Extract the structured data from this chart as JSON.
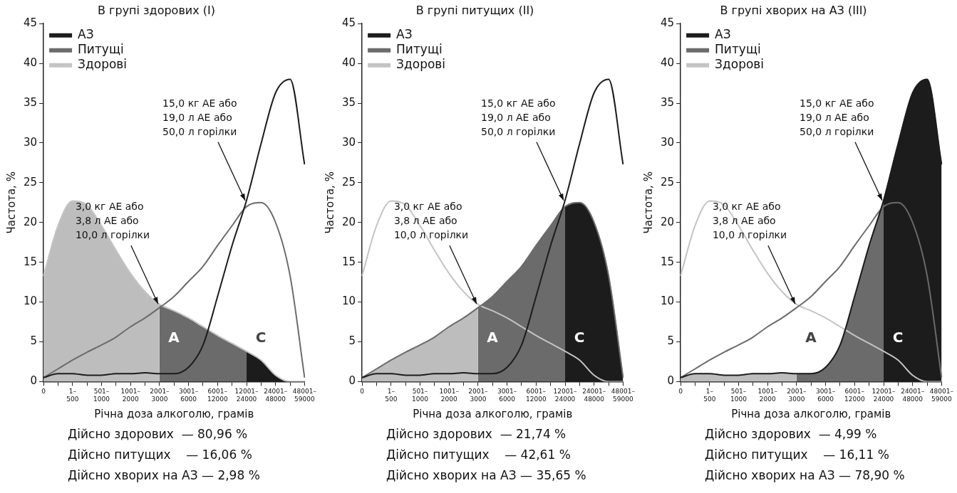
{
  "chart_data": [
    {
      "type": "line",
      "title": "В групі здорових (I)",
      "xlabel": "Річна доза алкоголю, грамів",
      "ylabel": "Частота, %",
      "categories": [
        "0",
        null,
        "1–500",
        null,
        "501–1000",
        null,
        "1001–2000",
        null,
        "2001–3000",
        null,
        "3001–6000",
        null,
        "6001–12000",
        null,
        "12001–24000",
        null,
        "24001–48000",
        null,
        "48001–59000"
      ],
      "series": [
        {
          "type": "area",
          "color": "#bdbdbd",
          "values": [
            13.3,
            19.6,
            22.7,
            22.2,
            19.6,
            16.5,
            13.6,
            11.3,
            9.7,
            null,
            null,
            null,
            null,
            null,
            null,
            null,
            null,
            null,
            null
          ]
        },
        {
          "type": "area",
          "color": "#6b6b6b",
          "values": [
            null,
            null,
            null,
            null,
            null,
            null,
            null,
            null,
            9.7,
            8.9,
            8.0,
            6.9,
            5.8,
            4.8,
            3.8,
            null,
            null,
            null,
            null
          ]
        },
        {
          "type": "area",
          "color": "#1c1c1c",
          "values": [
            null,
            null,
            null,
            null,
            null,
            null,
            null,
            null,
            null,
            null,
            null,
            null,
            null,
            null,
            3.8,
            2.7,
            0.8,
            0,
            0
          ]
        },
        {
          "name": "АЗ",
          "type": "line",
          "color": "#1c1c1c",
          "values": [
            0.5,
            1.0,
            1.0,
            0.8,
            0.8,
            1.0,
            1.0,
            1.1,
            1.0,
            1.0,
            1.8,
            4.6,
            10.7,
            17.1,
            22.8,
            29.9,
            36.3,
            38.0,
            27.3
          ]
        },
        {
          "name": "Питущі",
          "type": "line",
          "color": "#6b6b6b",
          "values": [
            0.5,
            1.6,
            2.7,
            3.7,
            4.6,
            5.6,
            6.9,
            8.0,
            9.3,
            10.7,
            12.6,
            14.5,
            17.1,
            19.6,
            22.0,
            22.5,
            20.0,
            13.3,
            0.5
          ]
        },
        {
          "name": "Здорові",
          "type": "line",
          "color": "#c4c4c4",
          "values": [
            13.3,
            19.6,
            22.7,
            22.2,
            19.6,
            16.5,
            13.6,
            11.3,
            9.7,
            8.9,
            8.0,
            6.9,
            5.8,
            4.8,
            3.8,
            2.7,
            0.8,
            0,
            0
          ]
        }
      ],
      "ylim": [
        0,
        45
      ],
      "yticks": [
        0,
        5,
        10,
        15,
        20,
        25,
        30,
        35,
        40,
        45
      ],
      "grid": false,
      "legend": "top left",
      "marker": "none",
      "annotations": [
        "A",
        "C",
        {
          "text": "3,0 кг АЕ або\n3,8 л АЕ або\n10,0 л горілки",
          "x": "2001–3000",
          "y": 9.5
        },
        {
          "text": "15,0 кг АЕ або\n19,0 л АЕ або\n50,0 л горілки",
          "x": "12001–24000",
          "y": 22.5
        },
        "Дійсно здорових  — 80,96 %",
        "Дійсно питущих    — 16,06 %",
        "Дійсно хворих на АЗ — 2,98 %"
      ]
    },
    {
      "type": "line",
      "title": "В групі питущих (II)",
      "xlabel": "Річна доза алкоголю, грамів",
      "ylabel": "Частота, %",
      "categories": [
        "0",
        null,
        "1–500",
        null,
        "501–1000",
        null,
        "1001–2000",
        null,
        "2001–3000",
        null,
        "3001–6000",
        null,
        "6001–12000",
        null,
        "12001–24000",
        null,
        "24001–48000",
        null,
        "48001–59000"
      ],
      "series": [
        {
          "type": "area",
          "color": "#bdbdbd",
          "values": [
            0.5,
            1.6,
            2.7,
            3.7,
            4.6,
            5.6,
            6.9,
            8.0,
            9.3,
            null,
            null,
            null,
            null,
            null,
            null,
            null,
            null,
            null,
            null
          ]
        },
        {
          "type": "area",
          "color": "#6b6b6b",
          "values": [
            null,
            null,
            null,
            null,
            null,
            null,
            null,
            null,
            9.3,
            10.7,
            12.6,
            14.5,
            17.1,
            19.6,
            22.0,
            null,
            null,
            null,
            null
          ]
        },
        {
          "type": "area",
          "color": "#1c1c1c",
          "values": [
            null,
            null,
            null,
            null,
            null,
            null,
            null,
            null,
            null,
            null,
            null,
            null,
            null,
            null,
            22.0,
            22.5,
            20.0,
            13.3,
            0.5
          ]
        },
        {
          "name": "АЗ",
          "type": "line",
          "color": "#1c1c1c",
          "values": [
            0.5,
            1.0,
            1.0,
            0.8,
            0.8,
            1.0,
            1.0,
            1.1,
            1.0,
            1.0,
            1.8,
            4.6,
            10.7,
            17.1,
            22.8,
            29.9,
            36.3,
            38.0,
            27.3
          ]
        },
        {
          "name": "Питущі",
          "type": "line",
          "color": "#6b6b6b",
          "values": [
            0.5,
            1.6,
            2.7,
            3.7,
            4.6,
            5.6,
            6.9,
            8.0,
            9.3,
            10.7,
            12.6,
            14.5,
            17.1,
            19.6,
            22.0,
            22.5,
            20.0,
            13.3,
            0.5
          ]
        },
        {
          "name": "Здорові",
          "type": "line",
          "color": "#c4c4c4",
          "values": [
            13.3,
            19.6,
            22.7,
            22.2,
            19.6,
            16.5,
            13.6,
            11.3,
            9.7,
            8.9,
            8.0,
            6.9,
            5.8,
            4.8,
            3.8,
            2.7,
            0.8,
            0,
            0
          ]
        }
      ],
      "ylim": [
        0,
        45
      ],
      "yticks": [
        0,
        5,
        10,
        15,
        20,
        25,
        30,
        35,
        40,
        45
      ],
      "grid": false,
      "legend": "top left",
      "marker": "none",
      "annotations": [
        "A",
        "C",
        {
          "text": "3,0 кг АЕ або\n3,8 л АЕ або\n10,0 л горілки",
          "x": "2001–3000",
          "y": 9.5
        },
        {
          "text": "15,0 кг АЕ або\n19,0 л АЕ або\n50,0 л горілки",
          "x": "12001–24000",
          "y": 22.5
        },
        "Дійсно здорових  — 21,74 %",
        "Дійсно питущих    — 42,61 %",
        "Дійсно хворих на АЗ — 35,65 %"
      ]
    },
    {
      "type": "line",
      "title": "В групі хворих на АЗ (III)",
      "xlabel": "Річна доза алкоголю, грамів",
      "ylabel": "Частота, %",
      "categories": [
        "0",
        null,
        "1–500",
        null,
        "501–1000",
        null,
        "1001–2000",
        null,
        "2001–3000",
        null,
        "3001–6000",
        null,
        "6001–12000",
        null,
        "12001–24000",
        null,
        "24001–48000",
        null,
        "48001–59000"
      ],
      "series": [
        {
          "type": "area",
          "color": "#bdbdbd",
          "values": [
            0.5,
            1.0,
            1.0,
            0.8,
            0.8,
            1.0,
            1.0,
            1.1,
            1.0,
            null,
            null,
            null,
            null,
            null,
            null,
            null,
            null,
            null,
            null
          ]
        },
        {
          "type": "area",
          "color": "#6b6b6b",
          "values": [
            null,
            null,
            null,
            null,
            null,
            null,
            null,
            null,
            1.0,
            1.0,
            1.8,
            4.6,
            10.7,
            17.1,
            22.8,
            null,
            null,
            null,
            null
          ]
        },
        {
          "type": "area",
          "color": "#1c1c1c",
          "values": [
            null,
            null,
            null,
            null,
            null,
            null,
            null,
            null,
            null,
            null,
            null,
            null,
            null,
            null,
            22.8,
            29.9,
            36.3,
            38.0,
            27.3
          ]
        },
        {
          "name": "АЗ",
          "type": "line",
          "color": "#1c1c1c",
          "values": [
            0.5,
            1.0,
            1.0,
            0.8,
            0.8,
            1.0,
            1.0,
            1.1,
            1.0,
            1.0,
            1.8,
            4.6,
            10.7,
            17.1,
            22.8,
            29.9,
            36.3,
            38.0,
            27.3
          ]
        },
        {
          "name": "Питущі",
          "type": "line",
          "color": "#6b6b6b",
          "values": [
            0.5,
            1.6,
            2.7,
            3.7,
            4.6,
            5.6,
            6.9,
            8.0,
            9.3,
            10.7,
            12.6,
            14.5,
            17.1,
            19.6,
            22.0,
            22.5,
            20.0,
            13.3,
            0.5
          ]
        },
        {
          "name": "Здорові",
          "type": "line",
          "color": "#c4c4c4",
          "values": [
            13.3,
            19.6,
            22.7,
            22.2,
            19.6,
            16.5,
            13.6,
            11.3,
            9.7,
            8.9,
            8.0,
            6.9,
            5.8,
            4.8,
            3.8,
            2.7,
            0.8,
            0,
            0
          ]
        }
      ],
      "ylim": [
        0,
        45
      ],
      "yticks": [
        0,
        5,
        10,
        15,
        20,
        25,
        30,
        35,
        40,
        45
      ],
      "grid": false,
      "legend": "top left",
      "marker": "none",
      "annotations": [
        "A",
        "C",
        {
          "text": "3,0 кг АЕ або\n3,8 л АЕ або\n10,0 л горілки",
          "x": "2001–3000",
          "y": 9.5
        },
        {
          "text": "15,0 кг АЕ або\n19,0 л АЕ або\n50,0 л горілки",
          "x": "12001–24000",
          "y": 22.5
        },
        "Дійсно здорових  — 4,99 %",
        "Дійсно питущих    — 16,11 %",
        "Дійсно хворих на АЗ — 78,90 %"
      ]
    }
  ]
}
